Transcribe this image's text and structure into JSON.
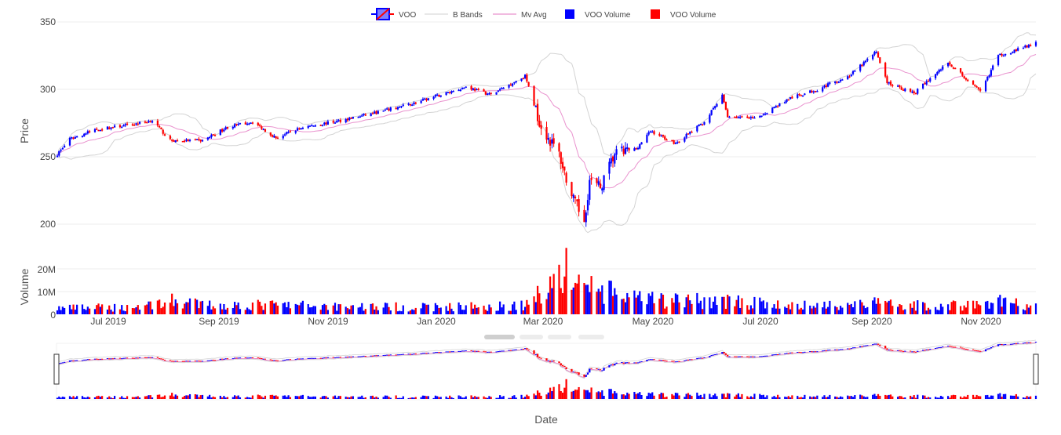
{
  "legend": [
    {
      "label": "VOO",
      "kind": "candle",
      "icon": "candlestick-legend-icon"
    },
    {
      "label": "B Bands",
      "kind": "line",
      "color": "#d0d0d0",
      "icon": "line-legend-icon"
    },
    {
      "label": "Mv Avg",
      "kind": "line",
      "color": "#e377c2",
      "icon": "line-legend-icon"
    },
    {
      "label": "VOO Volume",
      "kind": "box",
      "color": "#0000ff",
      "icon": "square-legend-icon"
    },
    {
      "label": "VOO Volume",
      "kind": "box",
      "color": "#ff0000",
      "icon": "square-legend-icon"
    }
  ],
  "axes": {
    "price_title": "Price",
    "volume_title": "Volume",
    "date_title": "Date"
  },
  "price_ticks": [
    "350",
    "300",
    "250",
    "200"
  ],
  "volume_ticks": [
    "20M",
    "10M",
    "0"
  ],
  "date_ticks": [
    "Jul 2019",
    "Sep 2019",
    "Nov 2019",
    "Jan 2020",
    "Mar 2020",
    "May 2020",
    "Jul 2020",
    "Sep 2020",
    "Nov 2020"
  ],
  "colors": {
    "increasing": "#0000ff",
    "decreasing": "#ff0000",
    "bands": "#d3d3d3",
    "moving_average": "#e377c2",
    "grid": "#eeeeee"
  },
  "chart_data": {
    "type": "candlestick",
    "ticker": "VOO",
    "x_range": [
      "2019-06-03",
      "2020-11-30"
    ],
    "price_ylim": [
      195,
      350
    ],
    "volume_ylim": [
      0,
      25000000
    ],
    "price_ticks": [
      200,
      250,
      300,
      350
    ],
    "volume_ticks": [
      0,
      10000000,
      20000000
    ],
    "price_keypoints": [
      [
        "2019-06-03",
        252
      ],
      [
        "2019-06-10",
        263
      ],
      [
        "2019-06-24",
        270
      ],
      [
        "2019-07-15",
        274
      ],
      [
        "2019-07-26",
        277
      ],
      [
        "2019-08-05",
        262
      ],
      [
        "2019-08-23",
        262
      ],
      [
        "2019-09-06",
        272
      ],
      [
        "2019-09-20",
        276
      ],
      [
        "2019-10-03",
        264
      ],
      [
        "2019-10-18",
        272
      ],
      [
        "2019-11-05",
        276
      ],
      [
        "2019-11-29",
        283
      ],
      [
        "2019-12-20",
        290
      ],
      [
        "2020-01-17",
        302
      ],
      [
        "2020-01-31",
        296
      ],
      [
        "2020-02-19",
        310
      ],
      [
        "2020-02-28",
        272
      ],
      [
        "2020-03-09",
        252
      ],
      [
        "2020-03-16",
        220
      ],
      [
        "2020-03-23",
        203
      ],
      [
        "2020-03-26",
        232
      ],
      [
        "2020-04-01",
        227
      ],
      [
        "2020-04-09",
        252
      ],
      [
        "2020-04-21",
        256
      ],
      [
        "2020-04-29",
        269
      ],
      [
        "2020-05-13",
        260
      ],
      [
        "2020-05-29",
        276
      ],
      [
        "2020-06-08",
        295
      ],
      [
        "2020-06-11",
        280
      ],
      [
        "2020-06-26",
        278
      ],
      [
        "2020-07-15",
        293
      ],
      [
        "2020-07-31",
        300
      ],
      [
        "2020-08-18",
        310
      ],
      [
        "2020-09-02",
        328
      ],
      [
        "2020-09-08",
        305
      ],
      [
        "2020-09-23",
        297
      ],
      [
        "2020-10-12",
        320
      ],
      [
        "2020-10-30",
        298
      ],
      [
        "2020-11-09",
        325
      ],
      [
        "2020-11-30",
        334
      ]
    ],
    "volume_keypoints": [
      [
        "2019-06-03",
        3000000
      ],
      [
        "2019-07-15",
        3500000
      ],
      [
        "2019-08-05",
        6500000
      ],
      [
        "2019-08-23",
        4500000
      ],
      [
        "2019-10-02",
        4500000
      ],
      [
        "2019-12-20",
        3500000
      ],
      [
        "2020-02-03",
        4000000
      ],
      [
        "2020-02-21",
        4500000
      ],
      [
        "2020-02-28",
        12000000
      ],
      [
        "2020-03-12",
        21000000
      ],
      [
        "2020-03-20",
        16000000
      ],
      [
        "2020-04-03",
        11000000
      ],
      [
        "2020-04-24",
        7000000
      ],
      [
        "2020-06-11",
        6500000
      ],
      [
        "2020-07-15",
        4000000
      ],
      [
        "2020-09-04",
        5500000
      ],
      [
        "2020-10-01",
        4000000
      ],
      [
        "2020-10-30",
        4800000
      ],
      [
        "2020-11-09",
        6500000
      ],
      [
        "2020-11-30",
        3500000
      ]
    ]
  }
}
